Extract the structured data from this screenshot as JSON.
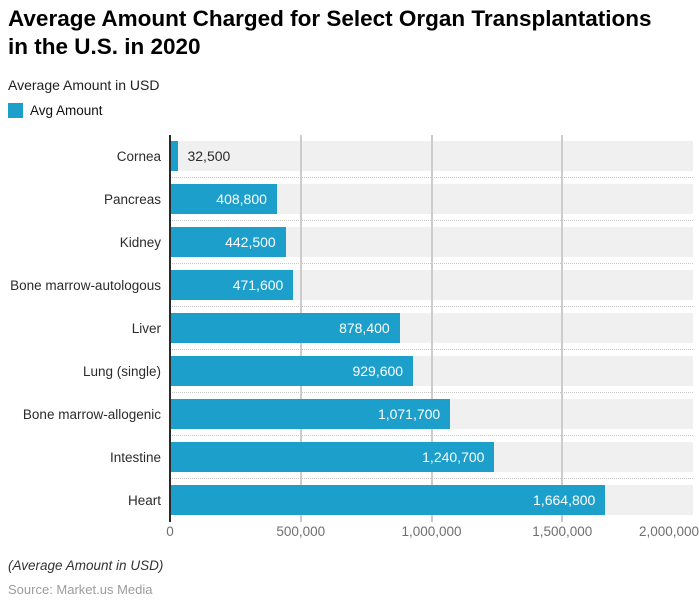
{
  "header": {
    "title": "Average Amount Charged for Select Organ Transplantations in the U.S. in 2020",
    "title_lines": [
      "Average Amount Charged for Select Organ Transplantations",
      "in the U.S. in 2020"
    ],
    "subtitle": "Average Amount in USD"
  },
  "legend": {
    "label": "Avg Amount",
    "color": "#1d9fcc"
  },
  "chart_data": {
    "type": "bar",
    "orientation": "horizontal",
    "title": "Average Amount Charged for Select Organ Transplantations in the U.S. in 2020",
    "subtitle": "Average Amount in USD",
    "legend_entries": [
      "Avg Amount"
    ],
    "legend_position": "top-left",
    "categories": [
      "Cornea",
      "Pancreas",
      "Kidney",
      "Bone marrow-autologous",
      "Liver",
      "Lung (single)",
      "Bone marrow-allogenic",
      "Intestine",
      "Heart"
    ],
    "values": [
      32500,
      408800,
      442500,
      471600,
      878400,
      929600,
      1071700,
      1240700,
      1664800
    ],
    "value_labels": [
      "32,500",
      "408,800",
      "442,500",
      "471,600",
      "878,400",
      "929,600",
      "1,071,700",
      "1,240,700",
      "1,664,800"
    ],
    "xlim": [
      0,
      2000000
    ],
    "x_ticks": [
      {
        "label": "0",
        "value": 0
      },
      {
        "label": "500,000",
        "value": 500000
      },
      {
        "label": "1,000,000",
        "value": 1000000
      },
      {
        "label": "1,500,000",
        "value": 1500000
      },
      {
        "label": "2,000,000",
        "value": 2000000
      }
    ],
    "grid": true,
    "bar_color": "#1d9fcc",
    "plot_band_color": "#f0f0f0",
    "gridline_color": "#cccccc",
    "axis_line_color": "#2a2a2a"
  },
  "footer": {
    "footnote": "(Average Amount in USD)",
    "source": "Source: Market.us Media"
  }
}
